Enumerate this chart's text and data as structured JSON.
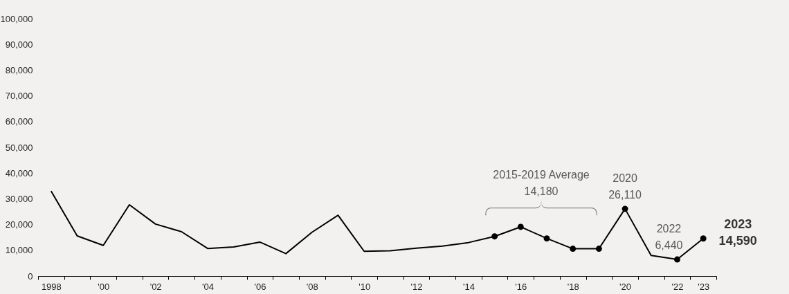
{
  "chart_data": {
    "type": "line",
    "categories": [
      "1998",
      null,
      "'00",
      null,
      "'02",
      null,
      "'04",
      null,
      "'06",
      null,
      "'08",
      null,
      "'10",
      null,
      "'12",
      null,
      "'14",
      null,
      "'16",
      null,
      "'18",
      null,
      "'20",
      null,
      "'22",
      "'23"
    ],
    "series": [
      {
        "type": "line",
        "color": "#000000",
        "values": [
          33000,
          15600,
          11900,
          27700,
          20200,
          17200,
          10700,
          11300,
          13200,
          8700,
          17000,
          23600,
          9600,
          9800,
          10800,
          11600,
          13000,
          15400,
          19100,
          14600,
          10600,
          10600,
          26110,
          8000,
          6440,
          14590
        ]
      },
      {
        "type": "scatter",
        "marker": "circle",
        "color": "#000000",
        "values": [
          null,
          null,
          null,
          null,
          null,
          null,
          null,
          null,
          null,
          null,
          null,
          null,
          null,
          null,
          null,
          null,
          null,
          15400,
          19100,
          14600,
          10600,
          10600,
          26110,
          null,
          6440,
          14590
        ]
      }
    ],
    "ylim": [
      0,
      100000
    ],
    "yticks": [
      0,
      {
        "value": 10000,
        "label": "10,000"
      },
      {
        "value": 20000,
        "label": "20,000"
      },
      {
        "value": 30000,
        "label": "30,000"
      },
      {
        "value": 40000,
        "label": "40,000"
      },
      {
        "value": 50000,
        "label": "50,000"
      },
      {
        "value": 60000,
        "label": "60,000"
      },
      {
        "value": 70000,
        "label": "70,000"
      },
      {
        "value": 80000,
        "label": "80,000"
      },
      {
        "value": 90000,
        "label": "90,000"
      },
      {
        "value": 100000,
        "label": "100,000"
      }
    ],
    "grid": false,
    "annotations": [
      "2015-2019 Average\n14,180",
      {
        "text": "2020\n26,110",
        "x": "'20",
        "y": 26110
      },
      {
        "text": "2022\n6,440",
        "x": "'22",
        "y": 6440
      },
      {
        "text": "2023\n14,590",
        "x": "'23",
        "y": 14590
      }
    ]
  }
}
